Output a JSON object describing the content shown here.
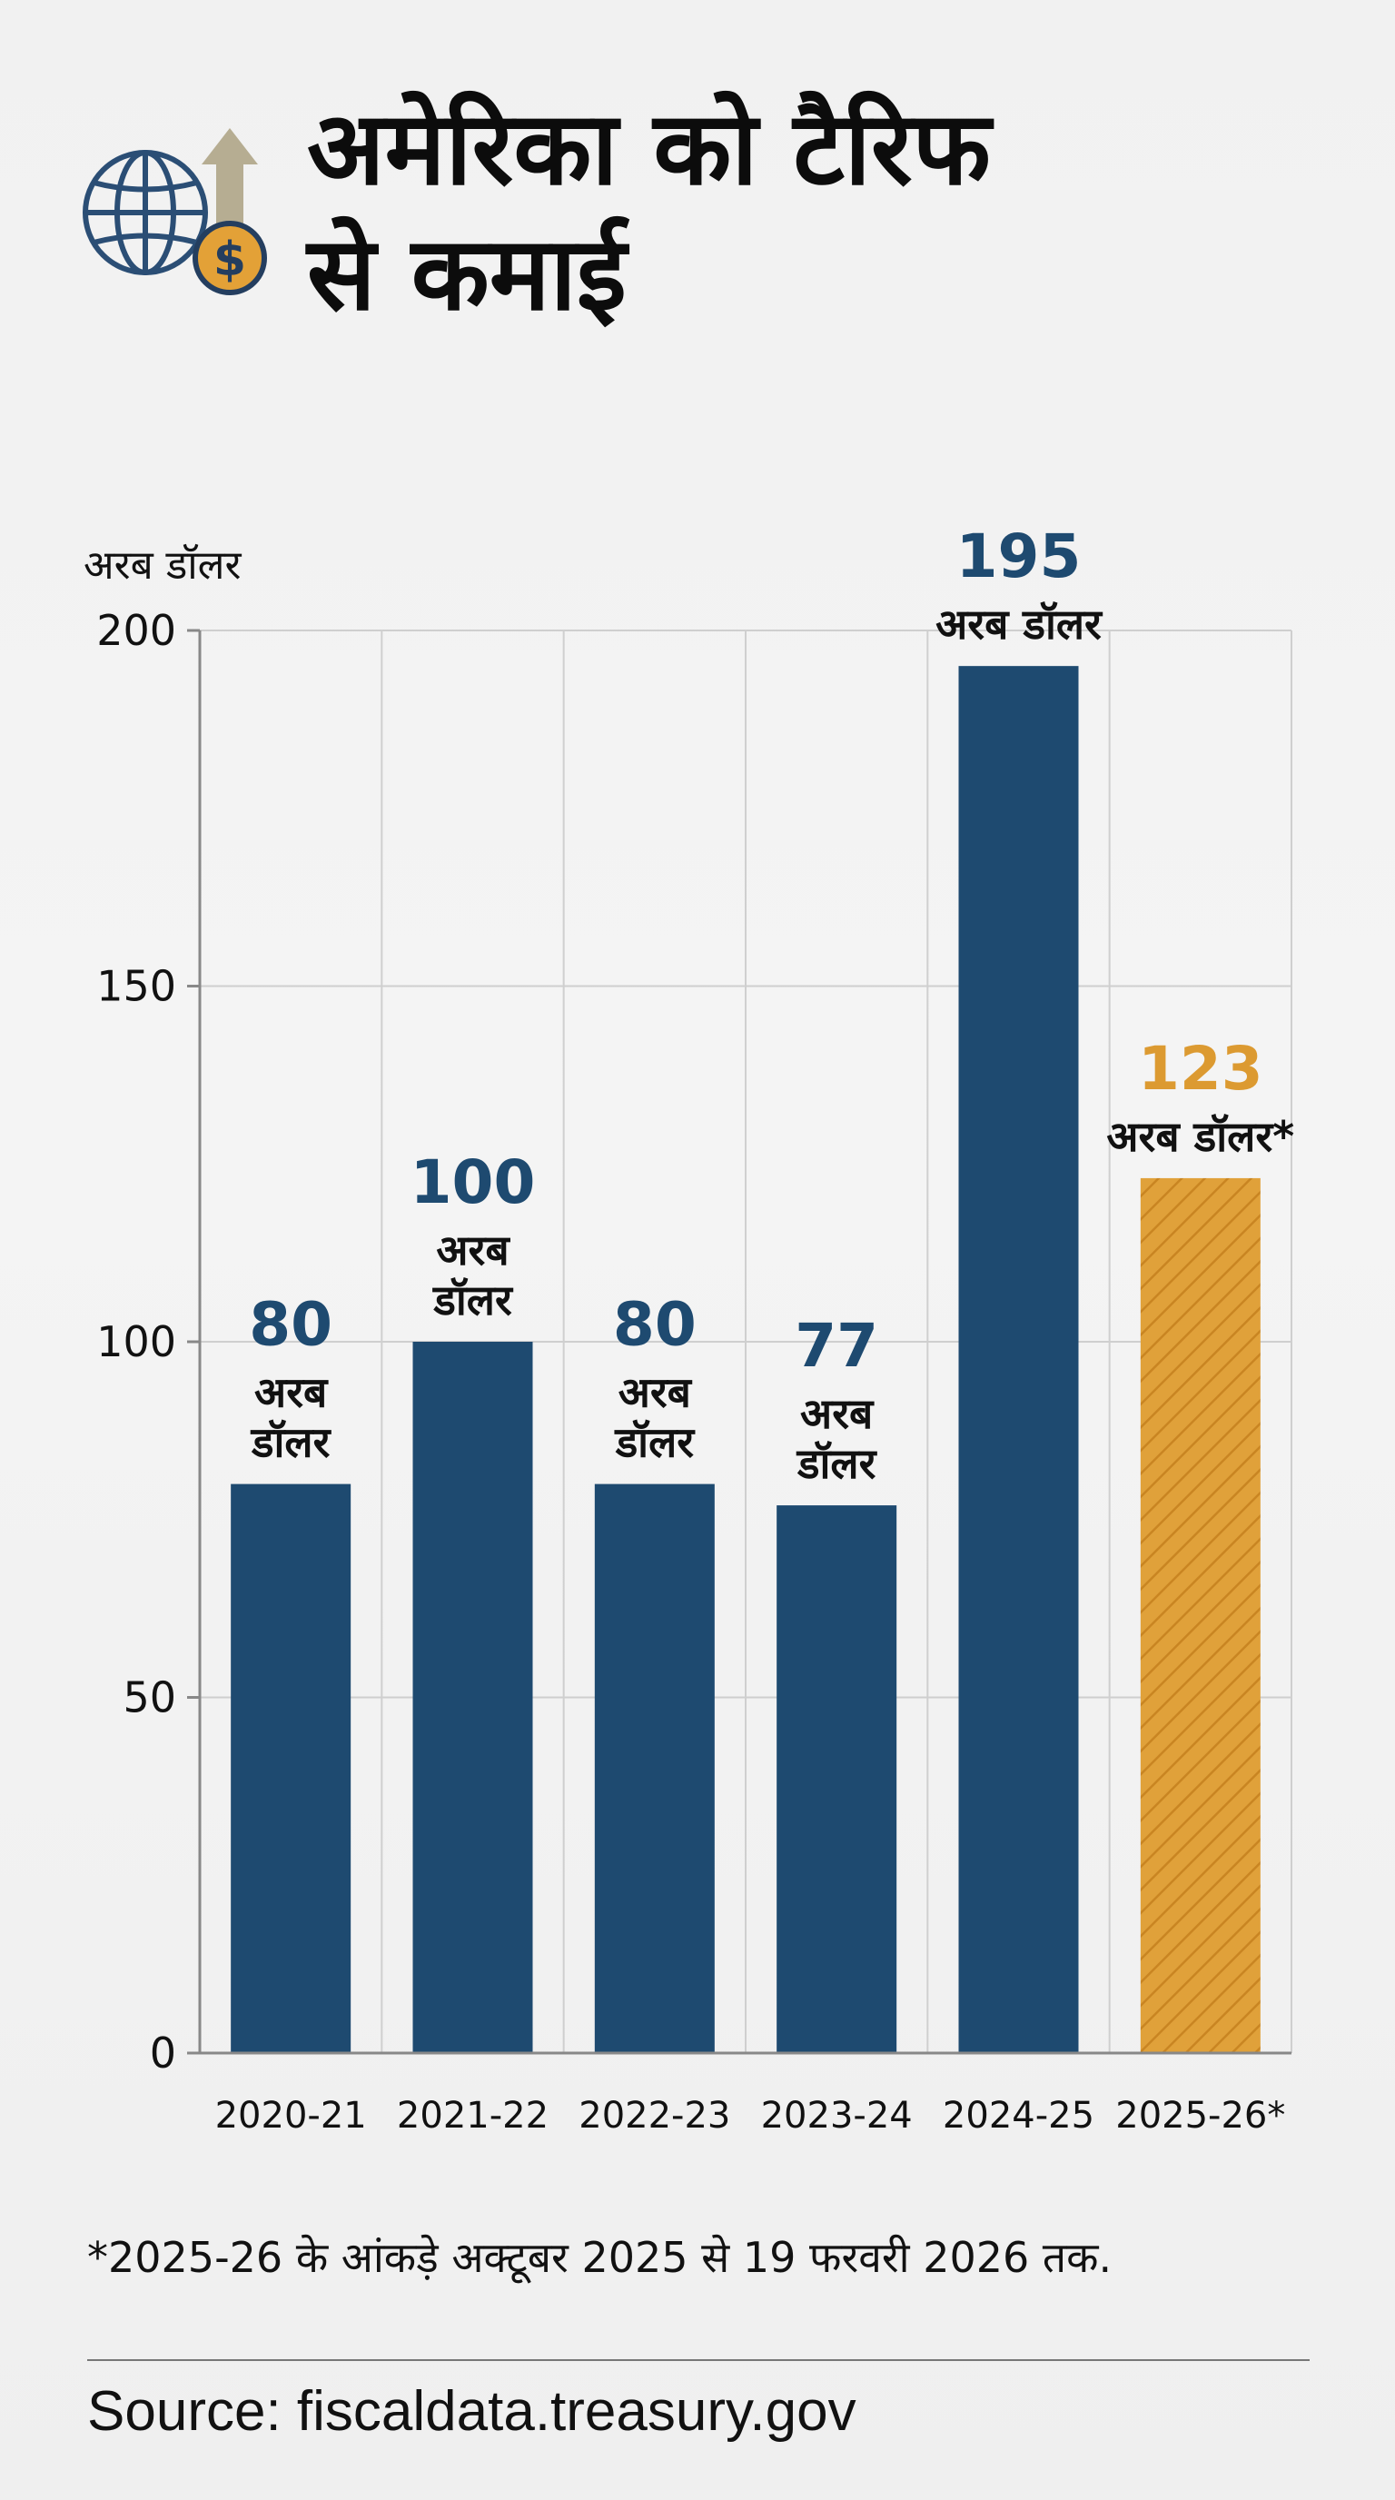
{
  "title": {
    "line1": "अमेरिका को टैरिफ",
    "line2": "से कमाई"
  },
  "icon": "globe-dollar-growth-icon",
  "colors": {
    "primary_bar": "#1e4a70",
    "highlight_bar": "#e0a13a",
    "highlight_stripe": "#c98522",
    "primary_label": "#1e4a70",
    "highlight_label": "#dc9a31",
    "grid": "#cfcfcf",
    "axis": "#888888"
  },
  "chart_data": {
    "type": "bar",
    "title": "अमेरिका को टैरिफ से कमाई",
    "ylabel": "अरब डॉलर",
    "xlabel": "",
    "ylim": [
      0,
      200
    ],
    "yticks": [
      0,
      50,
      100,
      150,
      200
    ],
    "grid": true,
    "categories": [
      "2020-21",
      "2021-22",
      "2022-23",
      "2023-24",
      "2024-25",
      "2025-26*"
    ],
    "values": [
      80,
      100,
      80,
      77,
      195,
      123
    ],
    "data_labels": [
      {
        "value": "80",
        "unit": [
          "अरब",
          "डॉलर"
        ],
        "highlight": false
      },
      {
        "value": "100",
        "unit": [
          "अरब",
          "डॉलर"
        ],
        "highlight": false
      },
      {
        "value": "80",
        "unit": [
          "अरब",
          "डॉलर"
        ],
        "highlight": false
      },
      {
        "value": "77",
        "unit": [
          "अरब",
          "डॉलर"
        ],
        "highlight": false
      },
      {
        "value": "195",
        "unit": [
          "अरब डॉलर"
        ],
        "highlight": false
      },
      {
        "value": "123",
        "unit": [
          "अरब डॉलर*"
        ],
        "highlight": true
      }
    ]
  },
  "footnote": "*2025-26 के आंकड़े अक्टूबर 2025 से 19 फरवरी 2026 तक.",
  "source": "Source: fiscaldata.treasury.gov"
}
